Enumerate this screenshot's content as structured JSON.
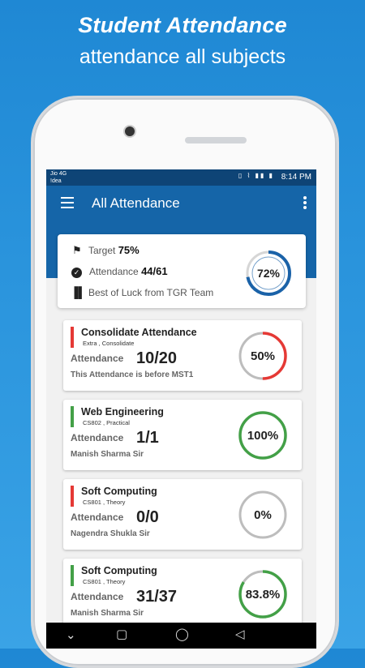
{
  "promo": {
    "title": "Student Attendance",
    "subtitle": "attendance all subjects"
  },
  "status_bar": {
    "carrier_1": "Jio 4G",
    "carrier_2": "!dea",
    "time": "8:14 PM"
  },
  "app_bar": {
    "title": "All Attendance"
  },
  "summary": {
    "target_label": "Target",
    "target_value": "75%",
    "attendance_label": "Attendance",
    "attendance_value": "44/61",
    "message": "Best of Luck from TGR Team",
    "percent_text": "72%",
    "percent": 72,
    "ring_color": "#1a62a8"
  },
  "subjects": [
    {
      "title": "Consolidate Attendance",
      "subtitle": "Extra , Consolidate",
      "label": "Attendance",
      "value": "10/20",
      "note": "This Attendance is before MST1",
      "percent_text": "50%",
      "percent": 50,
      "color": "#e53935"
    },
    {
      "title": "Web Engineering",
      "subtitle": "CS802 , Practical",
      "label": "Attendance",
      "value": "1/1",
      "note": "Manish Sharma Sir",
      "percent_text": "100%",
      "percent": 100,
      "color": "#43a047"
    },
    {
      "title": "Soft Computing",
      "subtitle": "CS801 , Theory",
      "label": "Attendance",
      "value": "0/0",
      "note": "Nagendra Shukla Sir",
      "percent_text": "0%",
      "percent": 0,
      "color": "#e53935"
    },
    {
      "title": "Soft Computing",
      "subtitle": "CS801 , Theory",
      "label": "Attendance",
      "value": "31/37",
      "note": "Manish Sharma Sir",
      "percent_text": "83.8%",
      "percent": 83.8,
      "color": "#43a047"
    }
  ],
  "colors": {
    "primary": "#1565a8",
    "status_bar": "#0e4476",
    "ring_track": "#bdbdbd"
  }
}
